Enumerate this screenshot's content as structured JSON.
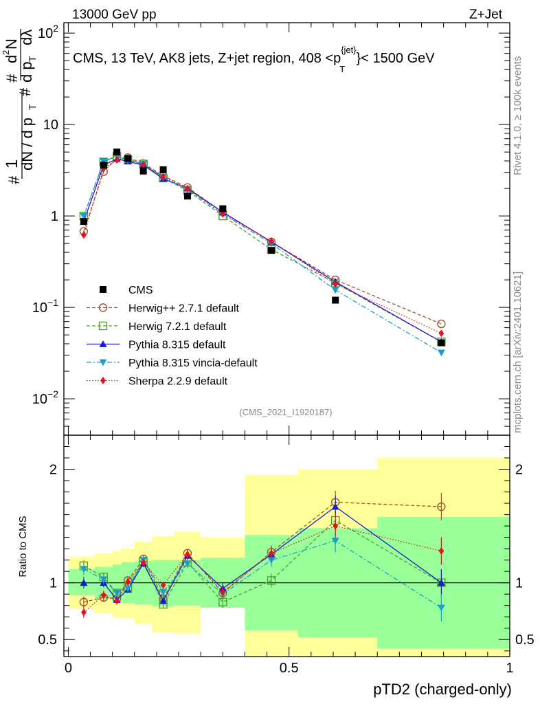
{
  "header": {
    "left": "13000 GeV pp",
    "right": "Z+Jet"
  },
  "chart_data": {
    "type": "scatter",
    "title": "CMS, 13 TeV, AK8 jets, Z+jet region, 408 <p_T^{jet}< 1500 GeV",
    "title_main": "CMS, 13 TeV, AK8 jets, Z+jet region, 408 <p",
    "title_sup": "{jet}",
    "title_sub": "T",
    "title_end": "}< 1500 GeV",
    "watermark": "(CMS_2021_I1920187)",
    "side_label_top": "Rivet 4.1.0, ≥ 100k events",
    "side_label_bottom": "mcplots.cern.ch [arXiv:2401.10621]",
    "xlabel": "pTD2 (charged-only)",
    "ylabel_ratio": "Ratio to CMS",
    "xlim": [
      -0.01,
      1.0
    ],
    "ylim": [
      0.004,
      130
    ],
    "ratio_ylim": [
      0.35,
      2.3
    ],
    "x_ticks": [
      {
        "v": 0,
        "t": "0"
      },
      {
        "v": 0.5,
        "t": "0.5"
      },
      {
        "v": 1,
        "t": "1"
      }
    ],
    "y_ticks": [
      {
        "v": 0.01,
        "base": "10",
        "exp": "−2"
      },
      {
        "v": 0.1,
        "base": "10",
        "exp": "−1"
      },
      {
        "v": 1,
        "base": "1",
        "exp": ""
      },
      {
        "v": 10,
        "base": "10",
        "exp": ""
      },
      {
        "v": 100,
        "base": "10",
        "exp": "2"
      }
    ],
    "ratio_ticks": [
      {
        "v": 0.5,
        "t": "0.5"
      },
      {
        "v": 1,
        "t": "1"
      },
      {
        "v": 2,
        "t": "2"
      }
    ],
    "bins": [
      {
        "lo": 0.0,
        "hi": 0.06
      },
      {
        "lo": 0.06,
        "hi": 0.1
      },
      {
        "lo": 0.1,
        "hi": 0.12
      },
      {
        "lo": 0.12,
        "hi": 0.15
      },
      {
        "lo": 0.15,
        "hi": 0.19
      },
      {
        "lo": 0.19,
        "hi": 0.24
      },
      {
        "lo": 0.24,
        "hi": 0.3
      },
      {
        "lo": 0.3,
        "hi": 0.4
      },
      {
        "lo": 0.4,
        "hi": 0.52
      },
      {
        "lo": 0.52,
        "hi": 0.7
      },
      {
        "lo": 0.7,
        "hi": 1.0
      }
    ],
    "x": [
      0.035,
      0.08,
      0.11,
      0.135,
      0.17,
      0.215,
      0.27,
      0.35,
      0.46,
      0.605,
      0.845
    ],
    "band_inner": [
      [
        0.89,
        1.12
      ],
      [
        0.86,
        1.14
      ],
      [
        0.83,
        1.16
      ],
      [
        0.82,
        1.18
      ],
      [
        0.81,
        1.19
      ],
      [
        0.79,
        1.2
      ],
      [
        0.8,
        1.2
      ],
      [
        0.78,
        1.22
      ],
      [
        0.58,
        1.42
      ],
      [
        0.52,
        1.48
      ],
      [
        0.42,
        1.58
      ]
    ],
    "band_outer": [
      [
        0.77,
        1.23
      ],
      [
        0.73,
        1.26
      ],
      [
        0.7,
        1.28
      ],
      [
        0.69,
        1.3
      ],
      [
        0.64,
        1.36
      ],
      [
        0.56,
        1.41
      ],
      [
        0.55,
        1.45
      ],
      [
        0.82,
        1.4
      ],
      [
        0.35,
        1.95
      ],
      [
        0.35,
        2.0
      ],
      [
        0.35,
        2.1
      ]
    ],
    "data": {
      "name": "CMS",
      "values": [
        0.87,
        3.6,
        5.0,
        4.25,
        3.1,
        3.2,
        1.65,
        1.2,
        0.42,
        0.12,
        0.041
      ]
    },
    "series": [
      {
        "name": "Herwig++ 2.7.1 default",
        "color": "#a0522d",
        "marker": "circle",
        "dash": "5,3",
        "values": [
          0.68,
          3.05,
          4.3,
          4.35,
          3.75,
          2.75,
          2.05,
          1.1,
          0.52,
          0.2,
          0.066
        ],
        "ratio": [
          0.83,
          0.87,
          0.86,
          1.02,
          1.21,
          0.86,
          1.26,
          0.91,
          1.27,
          1.71,
          1.67
        ],
        "rerr": [
          0.05,
          0.04,
          0.03,
          0.03,
          0.03,
          0.03,
          0.04,
          0.05,
          0.06,
          0.1,
          0.12
        ]
      },
      {
        "name": "Herwig 7.2.1 default",
        "color": "#4ea02a",
        "marker": "square",
        "dash": "5,3",
        "values": [
          1.0,
          3.9,
          4.5,
          4.1,
          3.7,
          2.6,
          1.9,
          1.0,
          0.43,
          0.185,
          0.042
        ],
        "ratio": [
          1.15,
          1.05,
          0.91,
          0.96,
          1.19,
          0.81,
          1.18,
          0.83,
          1.02,
          1.55,
          1.0
        ],
        "rerr": [
          0.05,
          0.04,
          0.03,
          0.03,
          0.03,
          0.03,
          0.04,
          0.05,
          0.06,
          0.1,
          0.12
        ]
      },
      {
        "name": "Pythia 8.315 default",
        "color": "#1a1ad6",
        "marker": "triangle-up",
        "dash": "",
        "values": [
          0.87,
          3.6,
          4.2,
          3.95,
          3.6,
          2.55,
          2.0,
          1.1,
          0.52,
          0.19,
          0.042
        ],
        "ratio": [
          1.0,
          1.0,
          0.85,
          0.94,
          1.17,
          0.84,
          1.24,
          0.95,
          1.25,
          1.67,
          1.0
        ],
        "rerr": [
          0.05,
          0.04,
          0.03,
          0.03,
          0.03,
          0.03,
          0.04,
          0.05,
          0.06,
          0.1,
          0.12
        ]
      },
      {
        "name": "Pythia 8.315 vincia-default",
        "color": "#1b9fc9",
        "marker": "triangle-down",
        "dash": "7,3,2,3",
        "values": [
          1.0,
          3.95,
          4.55,
          4.05,
          3.7,
          2.65,
          1.95,
          1.05,
          0.5,
          0.155,
          0.032
        ],
        "ratio": [
          1.12,
          1.03,
          0.91,
          0.95,
          1.2,
          0.92,
          1.17,
          0.9,
          1.2,
          1.37,
          0.78
        ],
        "rerr": [
          0.05,
          0.04,
          0.03,
          0.03,
          0.03,
          0.03,
          0.04,
          0.05,
          0.06,
          0.1,
          0.12
        ]
      },
      {
        "name": "Sherpa 2.2.9 default",
        "color": "#e8121c",
        "marker": "diamond",
        "dash": "1.5,2.5",
        "values": [
          0.62,
          3.3,
          4.1,
          4.3,
          3.65,
          2.7,
          2.0,
          1.05,
          0.53,
          0.18,
          0.052
        ],
        "ratio": [
          0.74,
          0.89,
          0.84,
          1.01,
          1.18,
          0.98,
          1.25,
          0.92,
          1.26,
          1.5,
          1.28
        ],
        "rerr": [
          0.05,
          0.04,
          0.03,
          0.03,
          0.03,
          0.03,
          0.04,
          0.05,
          0.06,
          0.1,
          0.12
        ]
      }
    ]
  }
}
